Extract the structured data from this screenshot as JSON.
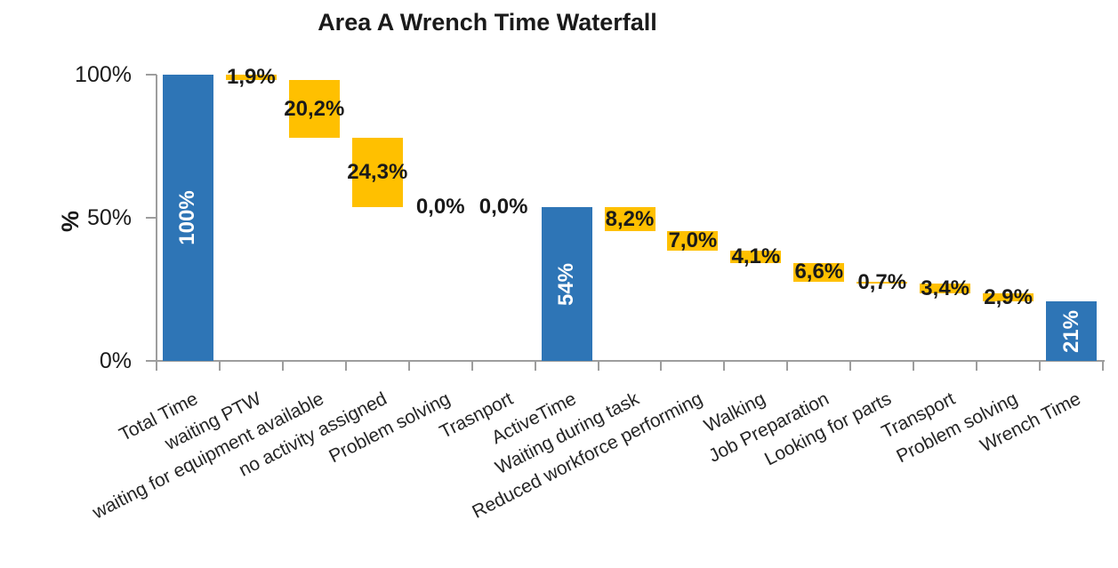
{
  "chart_data": {
    "type": "bar",
    "subtype": "waterfall",
    "title": "Area A Wrench Time Waterfall",
    "grid": false,
    "legend": "none",
    "y_axis": {
      "title": "%",
      "min": 0,
      "max": 100,
      "ticks": [
        {
          "label": "100%",
          "value": 100
        },
        {
          "label": "50%",
          "value": 50
        },
        {
          "label": "0%",
          "value": 0
        }
      ]
    },
    "colors": {
      "total_bar": "#2e75b6",
      "delta_bar": "#ffc000",
      "total_label_text": "#ffffff",
      "delta_label_text": "#1a1a1a",
      "axis_line": "#9d9d9d"
    },
    "items": [
      {
        "category": "Total Time",
        "kind": "total",
        "value": 100,
        "label": "100%"
      },
      {
        "category": "waiting PTW",
        "kind": "decrease",
        "value": 1.9,
        "label": "1,9%"
      },
      {
        "category": "waiting for equipment available",
        "kind": "decrease",
        "value": 20.2,
        "label": "20,2%"
      },
      {
        "category": "no activity assigned",
        "kind": "decrease",
        "value": 24.3,
        "label": "24,3%"
      },
      {
        "category": "Problem solving",
        "kind": "decrease",
        "value": 0.0,
        "label": "0,0%"
      },
      {
        "category": "Trasnport",
        "kind": "decrease",
        "value": 0.0,
        "label": "0,0%"
      },
      {
        "category": "ActiveTime",
        "kind": "total",
        "value": 53.6,
        "label": "54%"
      },
      {
        "category": "Waiting during task",
        "kind": "decrease",
        "value": 8.2,
        "label": "8,2%"
      },
      {
        "category": "Reduced workforce performing",
        "kind": "decrease",
        "value": 7.0,
        "label": "7,0%"
      },
      {
        "category": "Walking",
        "kind": "decrease",
        "value": 4.1,
        "label": "4,1%"
      },
      {
        "category": "Job Preparation",
        "kind": "decrease",
        "value": 6.6,
        "label": "6,6%"
      },
      {
        "category": "Looking for parts",
        "kind": "decrease",
        "value": 0.7,
        "label": "0,7%"
      },
      {
        "category": "Transport",
        "kind": "decrease",
        "value": 3.4,
        "label": "3,4%"
      },
      {
        "category": "Problem solving",
        "kind": "decrease",
        "value": 2.9,
        "label": "2,9%"
      },
      {
        "category": "Wrench Time",
        "kind": "total",
        "value": 20.7,
        "label": "21%"
      }
    ]
  }
}
